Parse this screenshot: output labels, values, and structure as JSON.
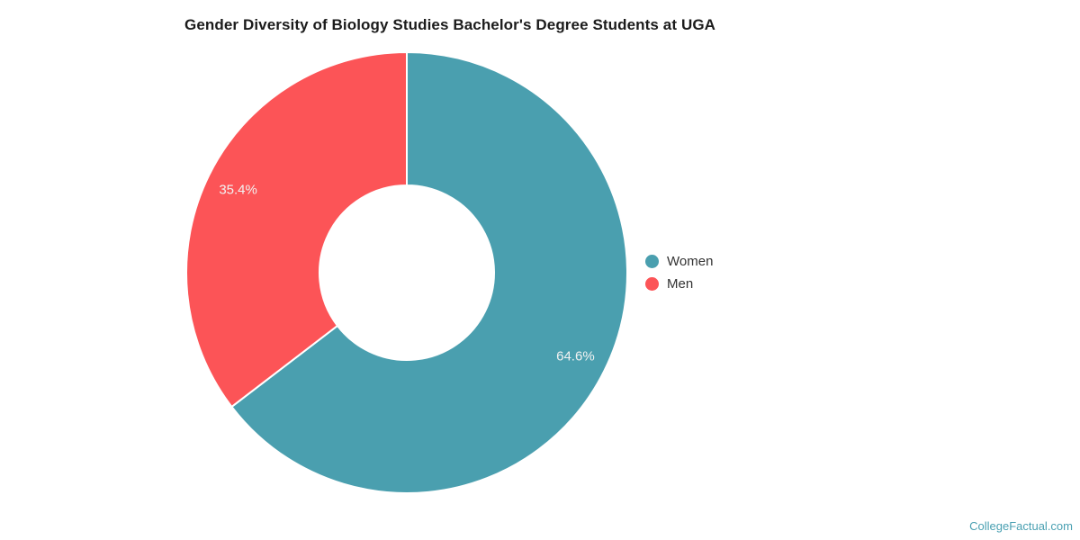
{
  "chart_data": {
    "type": "pie",
    "donut": true,
    "title": "Gender Diversity of Biology Studies Bachelor's Degree Students at UGA",
    "series": [
      {
        "name": "Women",
        "value": 64.6,
        "label": "64.6%",
        "color": "#4A9FAF"
      },
      {
        "name": "Men",
        "value": 35.4,
        "label": "35.4%",
        "color": "#FC5457"
      }
    ],
    "start_angle_deg": 0,
    "direction": "clockwise",
    "legend_position": "right",
    "slice_border_color": "#ffffff",
    "label_text_color": "#F2F2F2"
  },
  "colors": {
    "title_text": "#1B1B1B",
    "legend_text": "#333333"
  },
  "watermark": {
    "text": "CollegeFactual.com",
    "color": "#4AA0B2"
  }
}
